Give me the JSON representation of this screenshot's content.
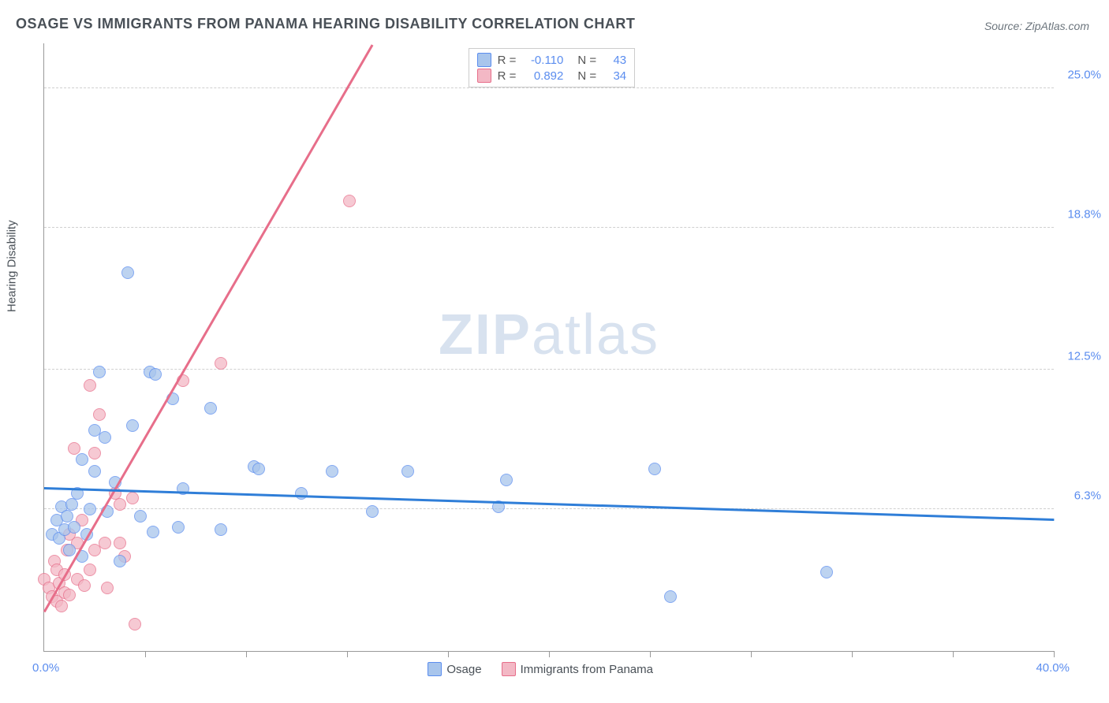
{
  "title": "OSAGE VS IMMIGRANTS FROM PANAMA HEARING DISABILITY CORRELATION CHART",
  "source_label": "Source: ",
  "source_value": "ZipAtlas.com",
  "y_axis_label": "Hearing Disability",
  "watermark_bold": "ZIP",
  "watermark_light": "atlas",
  "colors": {
    "series_a_fill": "#a8c5ec",
    "series_a_stroke": "#5b8def",
    "series_b_fill": "#f3b8c5",
    "series_b_stroke": "#e76e8a",
    "trend_a": "#2f7ed8",
    "trend_b": "#e76e8a",
    "tick_text": "#5b8def",
    "grid": "#d0d0d0"
  },
  "axes": {
    "x_min": 0.0,
    "x_max": 40.0,
    "x_min_label": "0.0%",
    "x_max_label": "40.0%",
    "y_min": 0.0,
    "y_max": 27.0,
    "y_gridlines": [
      6.3,
      12.5,
      18.8,
      25.0
    ],
    "y_labels": [
      "6.3%",
      "12.5%",
      "18.8%",
      "25.0%"
    ],
    "x_tick_count": 11
  },
  "marker": {
    "radius": 8,
    "opacity": 0.75,
    "stroke_width": 1
  },
  "stats_legend": {
    "rows": [
      {
        "swatch": "a",
        "r_label": "R =",
        "r_value": "-0.110",
        "n_label": "N =",
        "n_value": "43"
      },
      {
        "swatch": "b",
        "r_label": "R =",
        "r_value": "0.892",
        "n_label": "N =",
        "n_value": "34"
      }
    ]
  },
  "bottom_legend": [
    {
      "swatch": "a",
      "label": "Osage"
    },
    {
      "swatch": "b",
      "label": "Immigrants from Panama"
    }
  ],
  "trend_lines": {
    "a": {
      "x1": 0.0,
      "y1": 7.3,
      "x2": 40.0,
      "y2": 5.9
    },
    "b": {
      "x1": 0.0,
      "y1": 1.8,
      "x2": 13.0,
      "y2": 27.0
    }
  },
  "series_a": [
    [
      0.3,
      5.2
    ],
    [
      0.5,
      5.8
    ],
    [
      0.6,
      5.0
    ],
    [
      0.7,
      6.4
    ],
    [
      0.8,
      5.4
    ],
    [
      0.9,
      6.0
    ],
    [
      1.0,
      4.5
    ],
    [
      1.1,
      6.5
    ],
    [
      1.2,
      5.5
    ],
    [
      1.3,
      7.0
    ],
    [
      1.5,
      8.5
    ],
    [
      1.5,
      4.2
    ],
    [
      1.7,
      5.2
    ],
    [
      1.8,
      6.3
    ],
    [
      2.0,
      9.8
    ],
    [
      2.0,
      8.0
    ],
    [
      2.2,
      12.4
    ],
    [
      2.4,
      9.5
    ],
    [
      2.5,
      6.2
    ],
    [
      2.8,
      7.5
    ],
    [
      3.0,
      4.0
    ],
    [
      3.3,
      16.8
    ],
    [
      3.5,
      10.0
    ],
    [
      3.8,
      6.0
    ],
    [
      4.2,
      12.4
    ],
    [
      4.3,
      5.3
    ],
    [
      4.4,
      12.3
    ],
    [
      5.1,
      11.2
    ],
    [
      5.3,
      5.5
    ],
    [
      5.5,
      7.2
    ],
    [
      6.6,
      10.8
    ],
    [
      7.0,
      5.4
    ],
    [
      8.3,
      8.2
    ],
    [
      8.5,
      8.1
    ],
    [
      10.2,
      7.0
    ],
    [
      11.4,
      8.0
    ],
    [
      13.0,
      6.2
    ],
    [
      14.4,
      8.0
    ],
    [
      18.0,
      6.4
    ],
    [
      18.3,
      7.6
    ],
    [
      24.2,
      8.1
    ],
    [
      24.8,
      2.4
    ],
    [
      31.0,
      3.5
    ]
  ],
  "series_b": [
    [
      0.0,
      3.2
    ],
    [
      0.2,
      2.8
    ],
    [
      0.3,
      2.4
    ],
    [
      0.4,
      4.0
    ],
    [
      0.5,
      2.2
    ],
    [
      0.5,
      3.6
    ],
    [
      0.6,
      3.0
    ],
    [
      0.7,
      2.0
    ],
    [
      0.8,
      3.4
    ],
    [
      0.8,
      2.6
    ],
    [
      0.9,
      4.5
    ],
    [
      1.0,
      2.5
    ],
    [
      1.0,
      5.2
    ],
    [
      1.2,
      9.0
    ],
    [
      1.3,
      3.2
    ],
    [
      1.3,
      4.8
    ],
    [
      1.5,
      5.8
    ],
    [
      1.6,
      2.9
    ],
    [
      1.8,
      11.8
    ],
    [
      1.8,
      3.6
    ],
    [
      2.0,
      8.8
    ],
    [
      2.0,
      4.5
    ],
    [
      2.2,
      10.5
    ],
    [
      2.4,
      4.8
    ],
    [
      2.5,
      2.8
    ],
    [
      2.8,
      7.0
    ],
    [
      3.0,
      4.8
    ],
    [
      3.0,
      6.5
    ],
    [
      3.2,
      4.2
    ],
    [
      3.5,
      6.8
    ],
    [
      3.6,
      1.2
    ],
    [
      5.5,
      12.0
    ],
    [
      7.0,
      12.8
    ],
    [
      12.1,
      20.0
    ]
  ]
}
